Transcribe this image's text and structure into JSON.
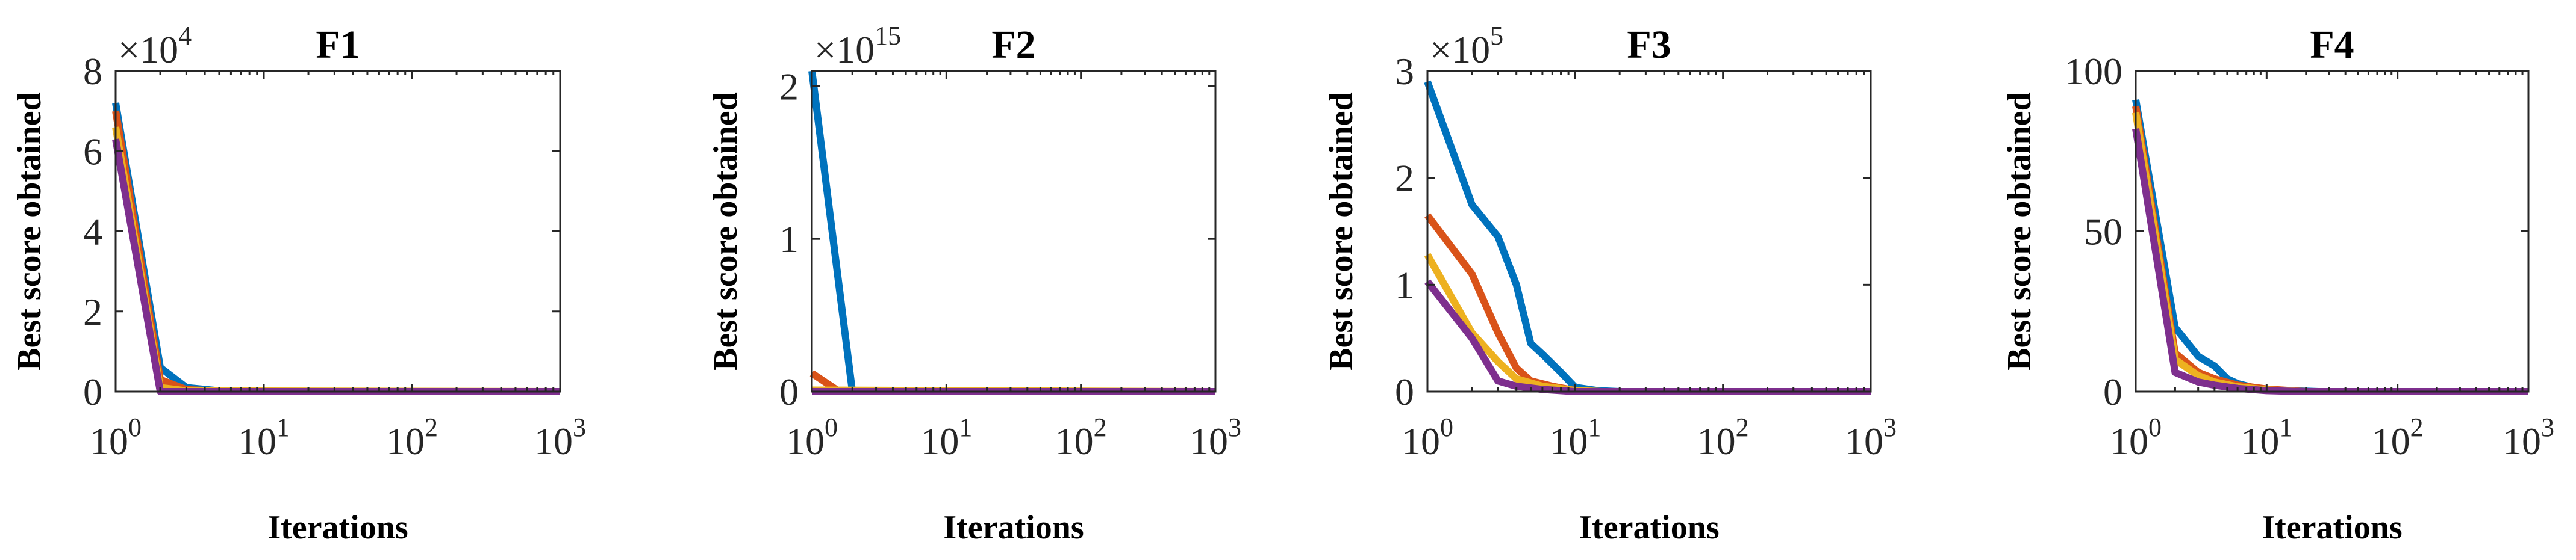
{
  "chart_data": [
    {
      "type": "line",
      "title": "F1",
      "xlabel": "Iterations",
      "ylabel": "Best score obtained",
      "xscale": "log",
      "xlim": [
        1,
        1000
      ],
      "ylim": [
        0,
        8
      ],
      "x_ticks": [
        {
          "base": "10",
          "exp": "0",
          "value": 1
        },
        {
          "base": "10",
          "exp": "1",
          "value": 10
        },
        {
          "base": "10",
          "exp": "2",
          "value": 100
        },
        {
          "base": "10",
          "exp": "3",
          "value": 1000
        }
      ],
      "y_ticks": [
        {
          "label": "0",
          "value": 0
        },
        {
          "label": "2",
          "value": 2
        },
        {
          "label": "4",
          "value": 4
        },
        {
          "label": "6",
          "value": 6
        },
        {
          "label": "8",
          "value": 8
        }
      ],
      "multiplier": {
        "text": "×10",
        "exp": "4"
      },
      "series": [
        {
          "name": "blue",
          "color": "#0072BD",
          "x": [
            1,
            2,
            3,
            5,
            10,
            1000
          ],
          "values": [
            7.2,
            0.6,
            0.1,
            0.02,
            0,
            0
          ]
        },
        {
          "name": "orange",
          "color": "#D95319",
          "x": [
            1,
            2,
            3,
            5,
            10,
            1000
          ],
          "values": [
            7.0,
            0.3,
            0.05,
            0.01,
            0,
            0
          ]
        },
        {
          "name": "yellow",
          "color": "#EDB120",
          "x": [
            1,
            2,
            3,
            1000
          ],
          "values": [
            6.6,
            0.1,
            0.02,
            0
          ]
        },
        {
          "name": "purple",
          "color": "#7E2F8E",
          "x": [
            1,
            2,
            1000
          ],
          "values": [
            6.3,
            0,
            0
          ]
        }
      ]
    },
    {
      "type": "line",
      "title": "F2",
      "xlabel": "Iterations",
      "ylabel": "Best score obtained",
      "xscale": "log",
      "xlim": [
        1,
        1000
      ],
      "ylim": [
        0,
        2.1
      ],
      "x_ticks": [
        {
          "base": "10",
          "exp": "0",
          "value": 1
        },
        {
          "base": "10",
          "exp": "1",
          "value": 10
        },
        {
          "base": "10",
          "exp": "2",
          "value": 100
        },
        {
          "base": "10",
          "exp": "3",
          "value": 1000
        }
      ],
      "y_ticks": [
        {
          "label": "0",
          "value": 0
        },
        {
          "label": "1",
          "value": 1
        },
        {
          "label": "2",
          "value": 2
        }
      ],
      "multiplier": {
        "text": "×10",
        "exp": "15"
      },
      "series": [
        {
          "name": "blue",
          "color": "#0072BD",
          "x": [
            1,
            2,
            1000
          ],
          "values": [
            2.1,
            0,
            0
          ]
        },
        {
          "name": "orange",
          "color": "#D95319",
          "x": [
            1,
            1.6,
            1000
          ],
          "values": [
            0.12,
            0,
            0
          ]
        },
        {
          "name": "yellow",
          "color": "#EDB120",
          "x": [
            1,
            1000
          ],
          "values": [
            0.01,
            0
          ]
        },
        {
          "name": "purple",
          "color": "#7E2F8E",
          "x": [
            1,
            1000
          ],
          "values": [
            0,
            0
          ]
        }
      ]
    },
    {
      "type": "line",
      "title": "F3",
      "xlabel": "Iterations",
      "ylabel": "Best score obtained",
      "xscale": "log",
      "xlim": [
        1,
        1000
      ],
      "ylim": [
        0,
        3
      ],
      "x_ticks": [
        {
          "base": "10",
          "exp": "0",
          "value": 1
        },
        {
          "base": "10",
          "exp": "1",
          "value": 10
        },
        {
          "base": "10",
          "exp": "2",
          "value": 100
        },
        {
          "base": "10",
          "exp": "3",
          "value": 1000
        }
      ],
      "y_ticks": [
        {
          "label": "0",
          "value": 0
        },
        {
          "label": "1",
          "value": 1
        },
        {
          "label": "2",
          "value": 2
        },
        {
          "label": "3",
          "value": 3
        }
      ],
      "multiplier": {
        "text": "×10",
        "exp": "5"
      },
      "series": [
        {
          "name": "blue",
          "color": "#0072BD",
          "x": [
            1,
            2,
            3,
            4,
            5,
            6,
            8,
            10,
            14,
            20,
            1000
          ],
          "values": [
            2.9,
            1.75,
            1.45,
            1.0,
            0.45,
            0.35,
            0.18,
            0.04,
            0.01,
            0,
            0
          ]
        },
        {
          "name": "orange",
          "color": "#D95319",
          "x": [
            1,
            2,
            3,
            4,
            5,
            7,
            10,
            15,
            1000
          ],
          "values": [
            1.65,
            1.1,
            0.55,
            0.22,
            0.1,
            0.05,
            0.01,
            0,
            0
          ]
        },
        {
          "name": "yellow",
          "color": "#EDB120",
          "x": [
            1,
            2,
            3,
            4,
            6,
            10,
            15,
            1000
          ],
          "values": [
            1.28,
            0.55,
            0.28,
            0.12,
            0.05,
            0.01,
            0,
            0
          ]
        },
        {
          "name": "purple",
          "color": "#7E2F8E",
          "x": [
            1,
            2,
            3,
            4,
            6,
            10,
            15,
            1000
          ],
          "values": [
            1.03,
            0.5,
            0.1,
            0.05,
            0.02,
            0,
            0,
            0
          ]
        }
      ]
    },
    {
      "type": "line",
      "title": "F4",
      "xlabel": "Iterations",
      "ylabel": "Best score obtained",
      "xscale": "log",
      "xlim": [
        1,
        1000
      ],
      "ylim": [
        0,
        100
      ],
      "x_ticks": [
        {
          "base": "10",
          "exp": "0",
          "value": 1
        },
        {
          "base": "10",
          "exp": "1",
          "value": 10
        },
        {
          "base": "10",
          "exp": "2",
          "value": 100
        },
        {
          "base": "10",
          "exp": "3",
          "value": 1000
        }
      ],
      "y_ticks": [
        {
          "label": "0",
          "value": 0
        },
        {
          "label": "50",
          "value": 50
        },
        {
          "label": "100",
          "value": 100
        }
      ],
      "multiplier": null,
      "series": [
        {
          "name": "blue",
          "color": "#0072BD",
          "x": [
            1,
            2,
            3,
            4,
            5,
            6,
            8,
            10,
            15,
            25,
            1000
          ],
          "values": [
            91,
            20,
            11,
            8,
            4,
            2.5,
            1.2,
            0.6,
            0.3,
            0,
            0
          ]
        },
        {
          "name": "orange",
          "color": "#D95319",
          "x": [
            1,
            2,
            3,
            4,
            6,
            10,
            20,
            1000
          ],
          "values": [
            89,
            12,
            6,
            4,
            2,
            0.8,
            0,
            0
          ]
        },
        {
          "name": "yellow",
          "color": "#EDB120",
          "x": [
            1,
            2,
            3,
            4,
            6,
            10,
            20,
            1000
          ],
          "values": [
            87,
            10,
            5,
            3,
            1.5,
            0.5,
            0,
            0
          ]
        },
        {
          "name": "purple",
          "color": "#7E2F8E",
          "x": [
            1,
            2,
            3,
            4,
            6,
            10,
            20,
            1000
          ],
          "values": [
            82,
            6,
            3,
            2,
            1,
            0.3,
            0,
            0
          ]
        }
      ]
    }
  ]
}
